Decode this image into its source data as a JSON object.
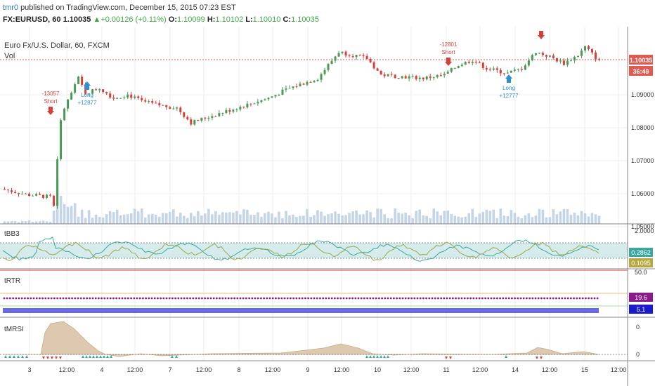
{
  "header": {
    "author": "tmr0",
    "published": "published on TradingView.com, December 15, 2015 07:23 EST",
    "symbol": "FX:EURUSD, 60",
    "price": "1.10035",
    "change": "+0.00126 (+0.11%)",
    "ohlc": {
      "o_label": "O:",
      "o": "1.10099",
      "h_label": "H:",
      "h": "1.10102",
      "l_label": "L:",
      "l": "1.10010",
      "c_label": "C:",
      "c": "1.10035"
    }
  },
  "colors": {
    "up": "#4a9a55",
    "down": "#d6403a",
    "volume": "#c5d5e8",
    "grid": "#eeeeee",
    "price_line": "#e05a50",
    "arrow_long": "#2b90d9",
    "arrow_short": "#d6403a",
    "bb_band": "#d6ecec",
    "mrsi_fill": "#dcc9b0"
  },
  "main_pane": {
    "title": "Euro Fx/U.S. Dollar, 60, FXCM",
    "vol_label": "Vol",
    "y_labels": [
      "1.09000",
      "1.08000",
      "1.07000",
      "1.06000",
      "1.05000"
    ],
    "last_price": "1.10035",
    "countdown": "36:49",
    "markers": [
      {
        "type": "short",
        "label1": "-13057",
        "label2": "Short"
      },
      {
        "type": "long",
        "label1": "Long",
        "label2": "+12877"
      },
      {
        "type": "short",
        "label1": "-12801",
        "label2": "Short"
      },
      {
        "type": "long",
        "label1": "Long",
        "label2": "+12777"
      },
      {
        "type": "short",
        "label1": "",
        "label2": ""
      }
    ]
  },
  "bb3_pane": {
    "title": "tBB3",
    "y_top": "2.0000",
    "val1": "0.2862",
    "val2": "0.1095"
  },
  "rtr_pane": {
    "title": "tRTR",
    "y_top": "50.0",
    "val1": "19.6",
    "val2": "5.1"
  },
  "mrsi_pane": {
    "title": "tMRSI",
    "y_labels": [
      "0",
      "0"
    ]
  },
  "x_axis": {
    "labels": [
      "3",
      "12:00",
      "4",
      "12:00",
      "7",
      "12:00",
      "8",
      "12:00",
      "9",
      "12:00",
      "10",
      "12:00",
      "11",
      "12:00",
      "14",
      "12:00",
      "15",
      "12:00"
    ]
  }
}
